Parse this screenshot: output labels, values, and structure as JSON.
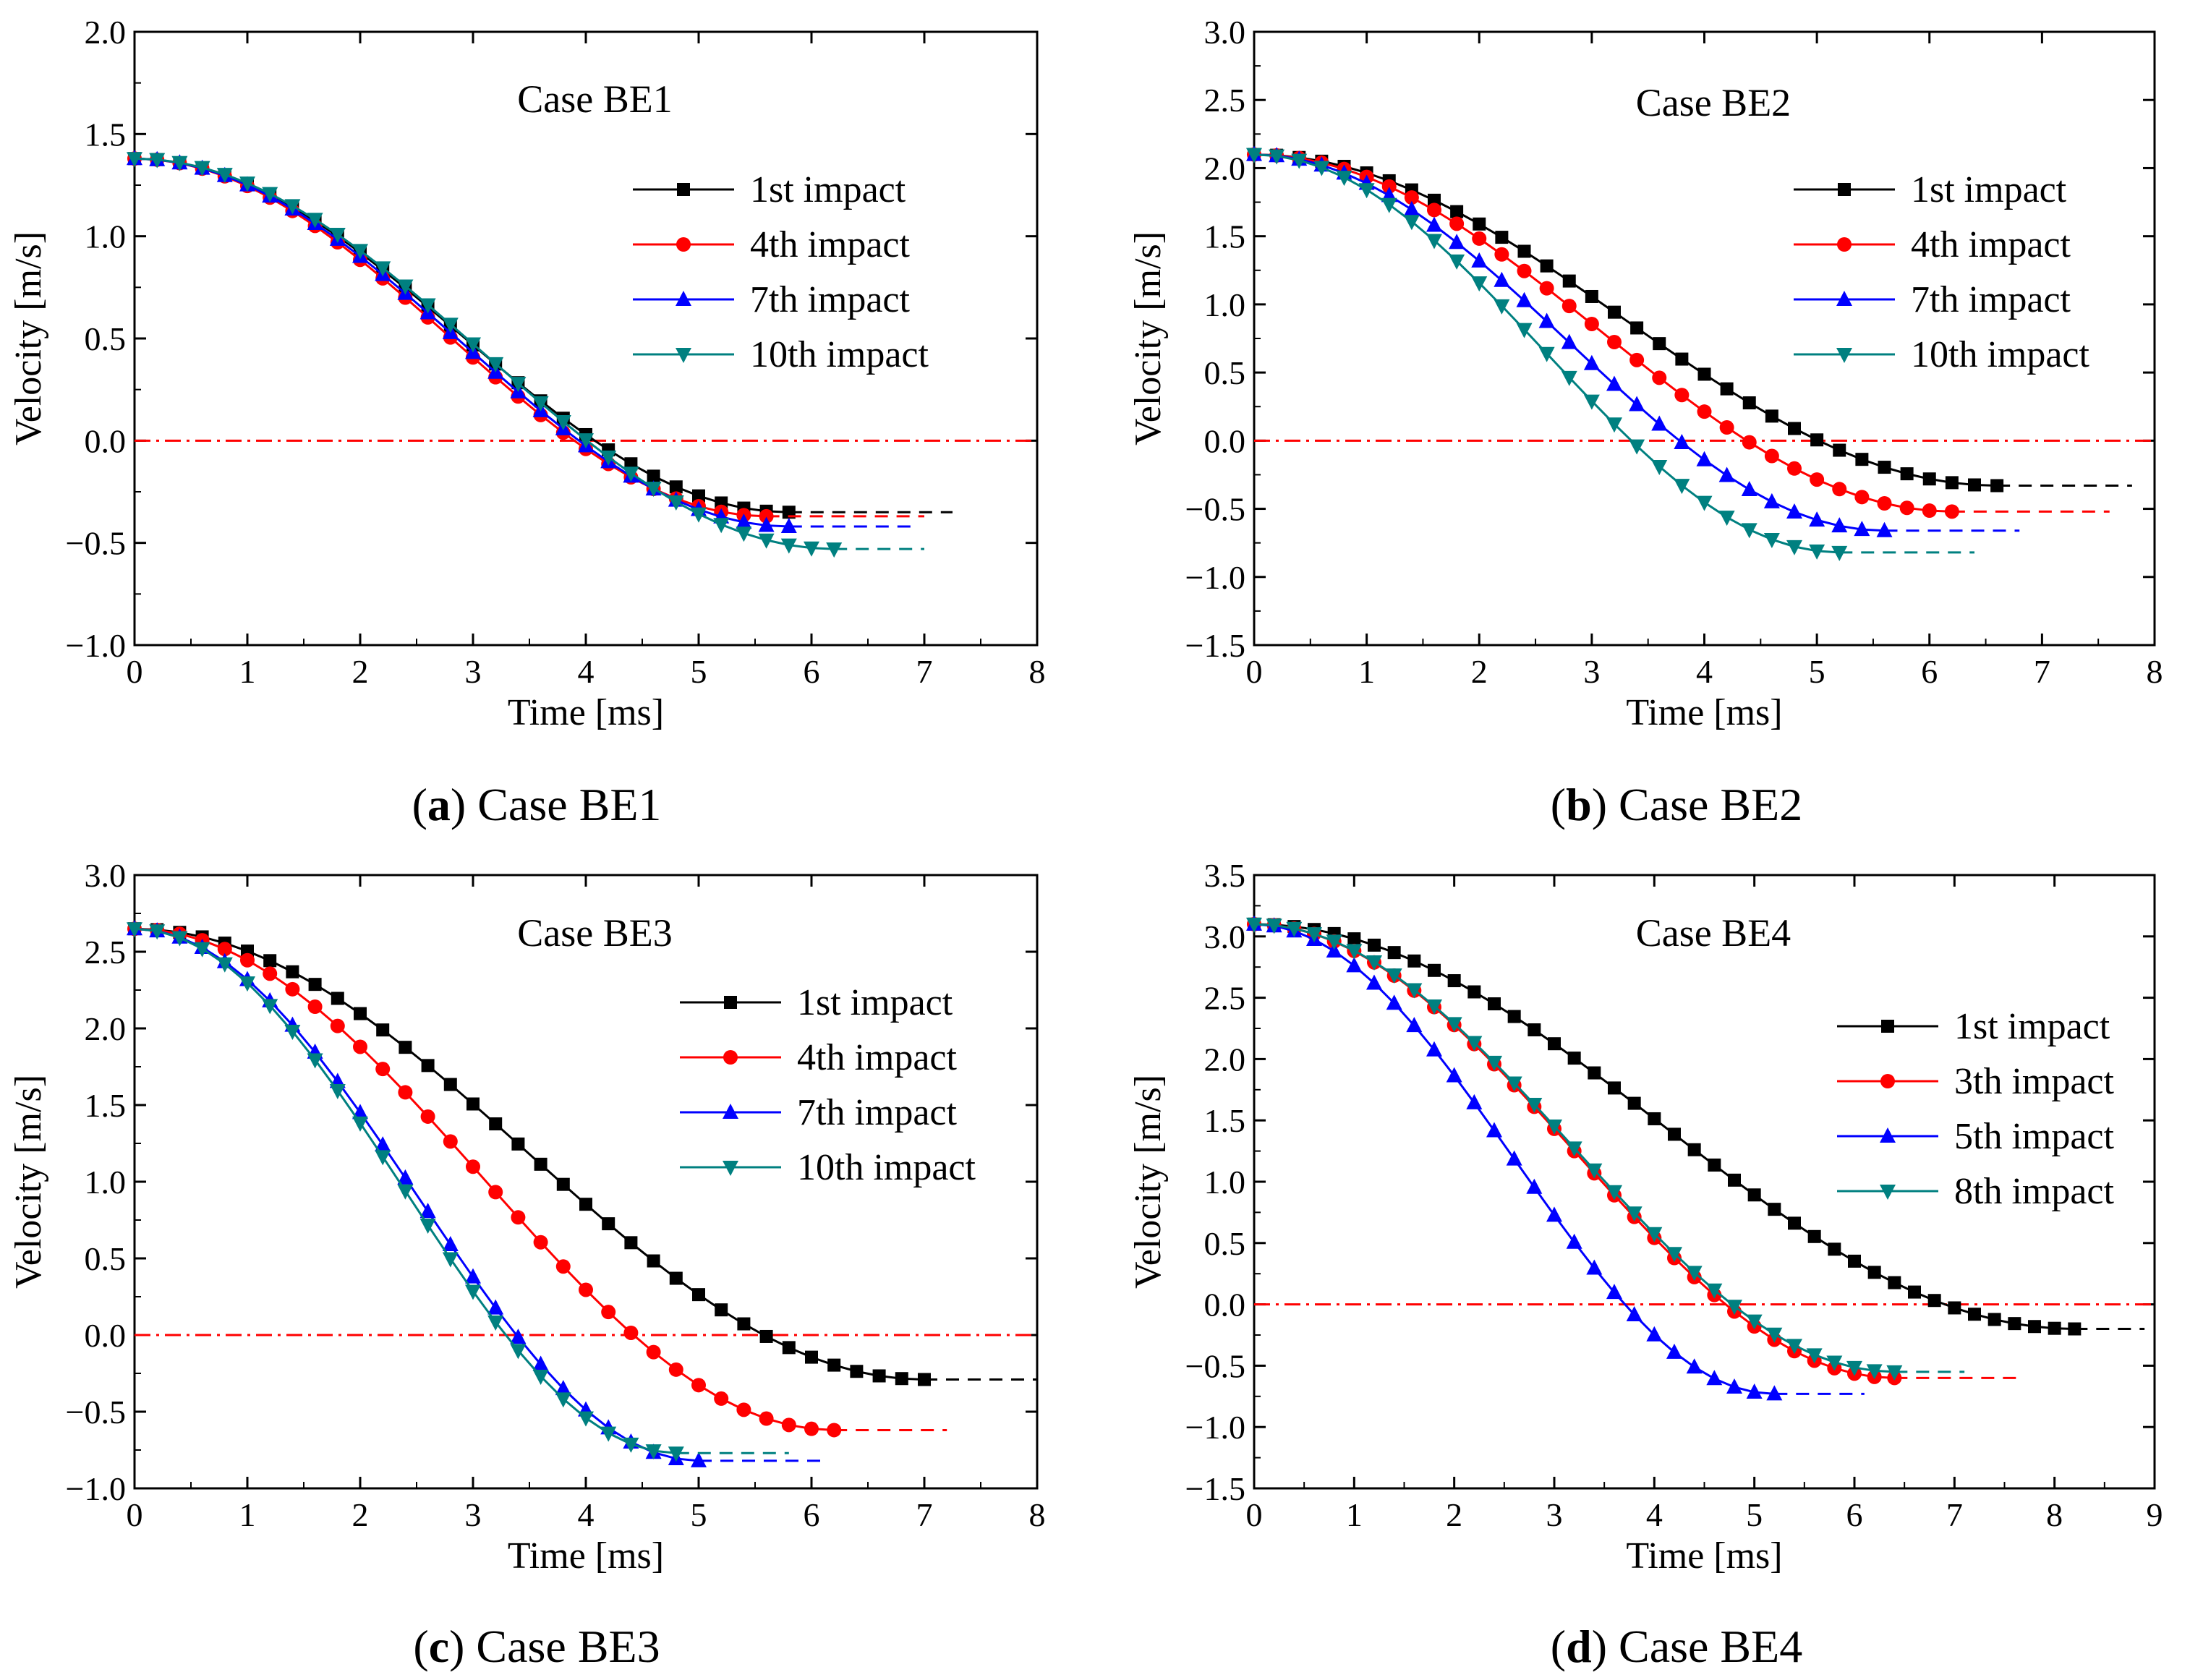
{
  "figure": {
    "reference_line_color": "#ff0000"
  },
  "chart_data": [
    {
      "type": "line",
      "letter": "a",
      "caption_text": " Case BE1",
      "title": "Case BE1",
      "xlabel": "Time [ms]",
      "ylabel": "Velocity [m/s]",
      "xlim": [
        0,
        8
      ],
      "ylim": [
        -1.0,
        2.0
      ],
      "xticks": [
        0,
        1,
        2,
        3,
        4,
        5,
        6,
        7,
        8
      ],
      "yticks": [
        -1.0,
        -0.5,
        0.0,
        0.5,
        1.0,
        1.5,
        2.0
      ],
      "xtick_labels": [
        "0",
        "1",
        "2",
        "3",
        "4",
        "5",
        "6",
        "7",
        "8"
      ],
      "ytick_labels": [
        "−1.0",
        "−0.5",
        "0.0",
        "0.5",
        "1.0",
        "1.5",
        "2.0"
      ],
      "zero_line": 0.0,
      "series": [
        {
          "name": "1st impact",
          "color": "#000000",
          "marker": "square",
          "v0": 1.38,
          "vend": -0.35,
          "t_end": 5.8,
          "t_dash": 7.25
        },
        {
          "name": "4th impact",
          "color": "#ff0000",
          "marker": "circle",
          "v0": 1.38,
          "vend": -0.37,
          "t_end": 5.6,
          "t_dash": 7.0
        },
        {
          "name": "7th impact",
          "color": "#0000ff",
          "marker": "triangle-up",
          "v0": 1.38,
          "vend": -0.42,
          "t_end": 5.8,
          "t_dash": 6.9
        },
        {
          "name": "10th impact",
          "color": "#008080",
          "marker": "triangle-down",
          "v0": 1.38,
          "vend": -0.53,
          "t_end": 6.2,
          "t_dash": 7.0
        }
      ]
    },
    {
      "type": "line",
      "letter": "b",
      "caption_text": " Case BE2",
      "title": "Case BE2",
      "xlabel": "Time [ms]",
      "ylabel": "Velocity [m/s]",
      "xlim": [
        0,
        8
      ],
      "ylim": [
        -1.5,
        3.0
      ],
      "xticks": [
        0,
        1,
        2,
        3,
        4,
        5,
        6,
        7,
        8
      ],
      "yticks": [
        -1.5,
        -1.0,
        -0.5,
        0.0,
        0.5,
        1.0,
        1.5,
        2.0,
        2.5,
        3.0
      ],
      "xtick_labels": [
        "0",
        "1",
        "2",
        "3",
        "4",
        "5",
        "6",
        "7",
        "8"
      ],
      "ytick_labels": [
        "−1.5",
        "−1.0",
        "−0.5",
        "0.0",
        "0.5",
        "1.0",
        "1.5",
        "2.0",
        "2.5",
        "3.0"
      ],
      "zero_line": 0.0,
      "series": [
        {
          "name": "1st impact",
          "color": "#000000",
          "marker": "square",
          "v0": 2.1,
          "vend": -0.33,
          "t_end": 6.6,
          "t_dash": 7.8
        },
        {
          "name": "4th impact",
          "color": "#ff0000",
          "marker": "circle",
          "v0": 2.1,
          "vend": -0.52,
          "t_end": 6.2,
          "t_dash": 7.6
        },
        {
          "name": "7th impact",
          "color": "#0000ff",
          "marker": "triangle-up",
          "v0": 2.1,
          "vend": -0.66,
          "t_end": 5.6,
          "t_dash": 6.8
        },
        {
          "name": "10th impact",
          "color": "#008080",
          "marker": "triangle-down",
          "v0": 2.1,
          "vend": -0.82,
          "t_end": 5.2,
          "t_dash": 6.4
        }
      ]
    },
    {
      "type": "line",
      "letter": "c",
      "caption_text": " Case BE3",
      "title": "Case BE3",
      "xlabel": "Time [ms]",
      "ylabel": "Velocity [m/s]",
      "xlim": [
        0,
        8
      ],
      "ylim": [
        -1.0,
        3.0
      ],
      "xticks": [
        0,
        1,
        2,
        3,
        4,
        5,
        6,
        7,
        8
      ],
      "yticks": [
        -1.0,
        -0.5,
        0.0,
        0.5,
        1.0,
        1.5,
        2.0,
        2.5,
        3.0
      ],
      "xtick_labels": [
        "0",
        "1",
        "2",
        "3",
        "4",
        "5",
        "6",
        "7",
        "8"
      ],
      "ytick_labels": [
        "−1.0",
        "−0.5",
        "0.0",
        "0.5",
        "1.0",
        "1.5",
        "2.0",
        "2.5",
        "3.0"
      ],
      "zero_line": 0.0,
      "series": [
        {
          "name": "1st impact",
          "color": "#000000",
          "marker": "square",
          "v0": 2.65,
          "vend": -0.29,
          "t_end": 7.0,
          "t_dash": 8.0
        },
        {
          "name": "4th impact",
          "color": "#ff0000",
          "marker": "circle",
          "v0": 2.65,
          "vend": -0.62,
          "t_end": 6.2,
          "t_dash": 7.2
        },
        {
          "name": "7th impact",
          "color": "#0000ff",
          "marker": "triangle-up",
          "v0": 2.65,
          "vend": -0.82,
          "t_end": 5.0,
          "t_dash": 6.1
        },
        {
          "name": "10th impact",
          "color": "#008080",
          "marker": "triangle-down",
          "v0": 2.65,
          "vend": -0.77,
          "t_end": 4.8,
          "t_dash": 5.8
        }
      ]
    },
    {
      "type": "line",
      "letter": "d",
      "caption_text": " Case BE4",
      "title": "Case BE4",
      "xlabel": "Time [ms]",
      "ylabel": "Velocity [m/s]",
      "xlim": [
        0,
        9
      ],
      "ylim": [
        -1.5,
        3.5
      ],
      "xticks": [
        0,
        1,
        2,
        3,
        4,
        5,
        6,
        7,
        8,
        9
      ],
      "yticks": [
        -1.5,
        -1.0,
        -0.5,
        0.0,
        0.5,
        1.0,
        1.5,
        2.0,
        2.5,
        3.0,
        3.5
      ],
      "xtick_labels": [
        "0",
        "1",
        "2",
        "3",
        "4",
        "5",
        "6",
        "7",
        "8",
        "9"
      ],
      "ytick_labels": [
        "−1.5",
        "−1.0",
        "−0.5",
        "0.0",
        "0.5",
        "1.0",
        "1.5",
        "2.0",
        "2.5",
        "3.0",
        "3.5"
      ],
      "zero_line": 0.0,
      "series": [
        {
          "name": "1st impact",
          "color": "#000000",
          "marker": "square",
          "v0": 3.1,
          "vend": -0.2,
          "t_end": 8.2,
          "t_dash": 8.9
        },
        {
          "name": "3th impact",
          "color": "#ff0000",
          "marker": "circle",
          "v0": 3.1,
          "vend": -0.6,
          "t_end": 6.4,
          "t_dash": 7.7
        },
        {
          "name": "5th impact",
          "color": "#0000ff",
          "marker": "triangle-up",
          "v0": 3.1,
          "vend": -0.73,
          "t_end": 5.2,
          "t_dash": 6.1
        },
        {
          "name": "8th impact",
          "color": "#008080",
          "marker": "triangle-down",
          "v0": 3.1,
          "vend": -0.55,
          "t_end": 6.4,
          "t_dash": 7.1
        }
      ]
    }
  ]
}
